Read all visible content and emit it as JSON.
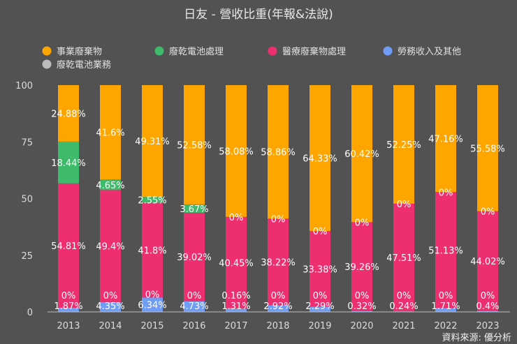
{
  "chart_data": {
    "type": "bar",
    "stacked": true,
    "title": "日友 - 營收比重(年報&法說)",
    "source": "資料來源: 優分析",
    "categories": [
      "2013",
      "2014",
      "2015",
      "2016",
      "2017",
      "2018",
      "2019",
      "2020",
      "2021",
      "2022",
      "2023"
    ],
    "ylim": [
      0,
      100
    ],
    "yticks": [
      0,
      25,
      50,
      75,
      100
    ],
    "legend_position": "top-left",
    "grid": false,
    "series": [
      {
        "name": "勞務收入及其他",
        "color": "#6f9cf5",
        "values": [
          1.87,
          4.35,
          6.34,
          4.73,
          1.31,
          2.92,
          2.29,
          0.32,
          0.24,
          1.71,
          0.4
        ]
      },
      {
        "name": "廢乾電池業務",
        "color": "#bbbbbb",
        "values": [
          0,
          0,
          0,
          0,
          0.16,
          0,
          0,
          0,
          0,
          0,
          0
        ]
      },
      {
        "name": "醫療廢棄物處理",
        "color": "#ee2f6f",
        "values": [
          54.81,
          49.4,
          41.8,
          39.02,
          40.45,
          38.22,
          33.38,
          39.26,
          47.51,
          51.13,
          44.02
        ]
      },
      {
        "name": "廢乾電池處理",
        "color": "#3dbb6a",
        "values": [
          18.44,
          4.65,
          2.55,
          3.67,
          0,
          0,
          0,
          0,
          0,
          0,
          0
        ]
      },
      {
        "name": "事業廢棄物",
        "color": "#ffa500",
        "values": [
          24.88,
          41.6,
          49.31,
          52.58,
          58.08,
          58.86,
          64.33,
          60.42,
          52.25,
          47.16,
          55.58
        ]
      }
    ],
    "legend_order": [
      "事業廢棄物",
      "廢乾電池處理",
      "醫療廢棄物處理",
      "勞務收入及其他",
      "廢乾電池業務"
    ]
  }
}
